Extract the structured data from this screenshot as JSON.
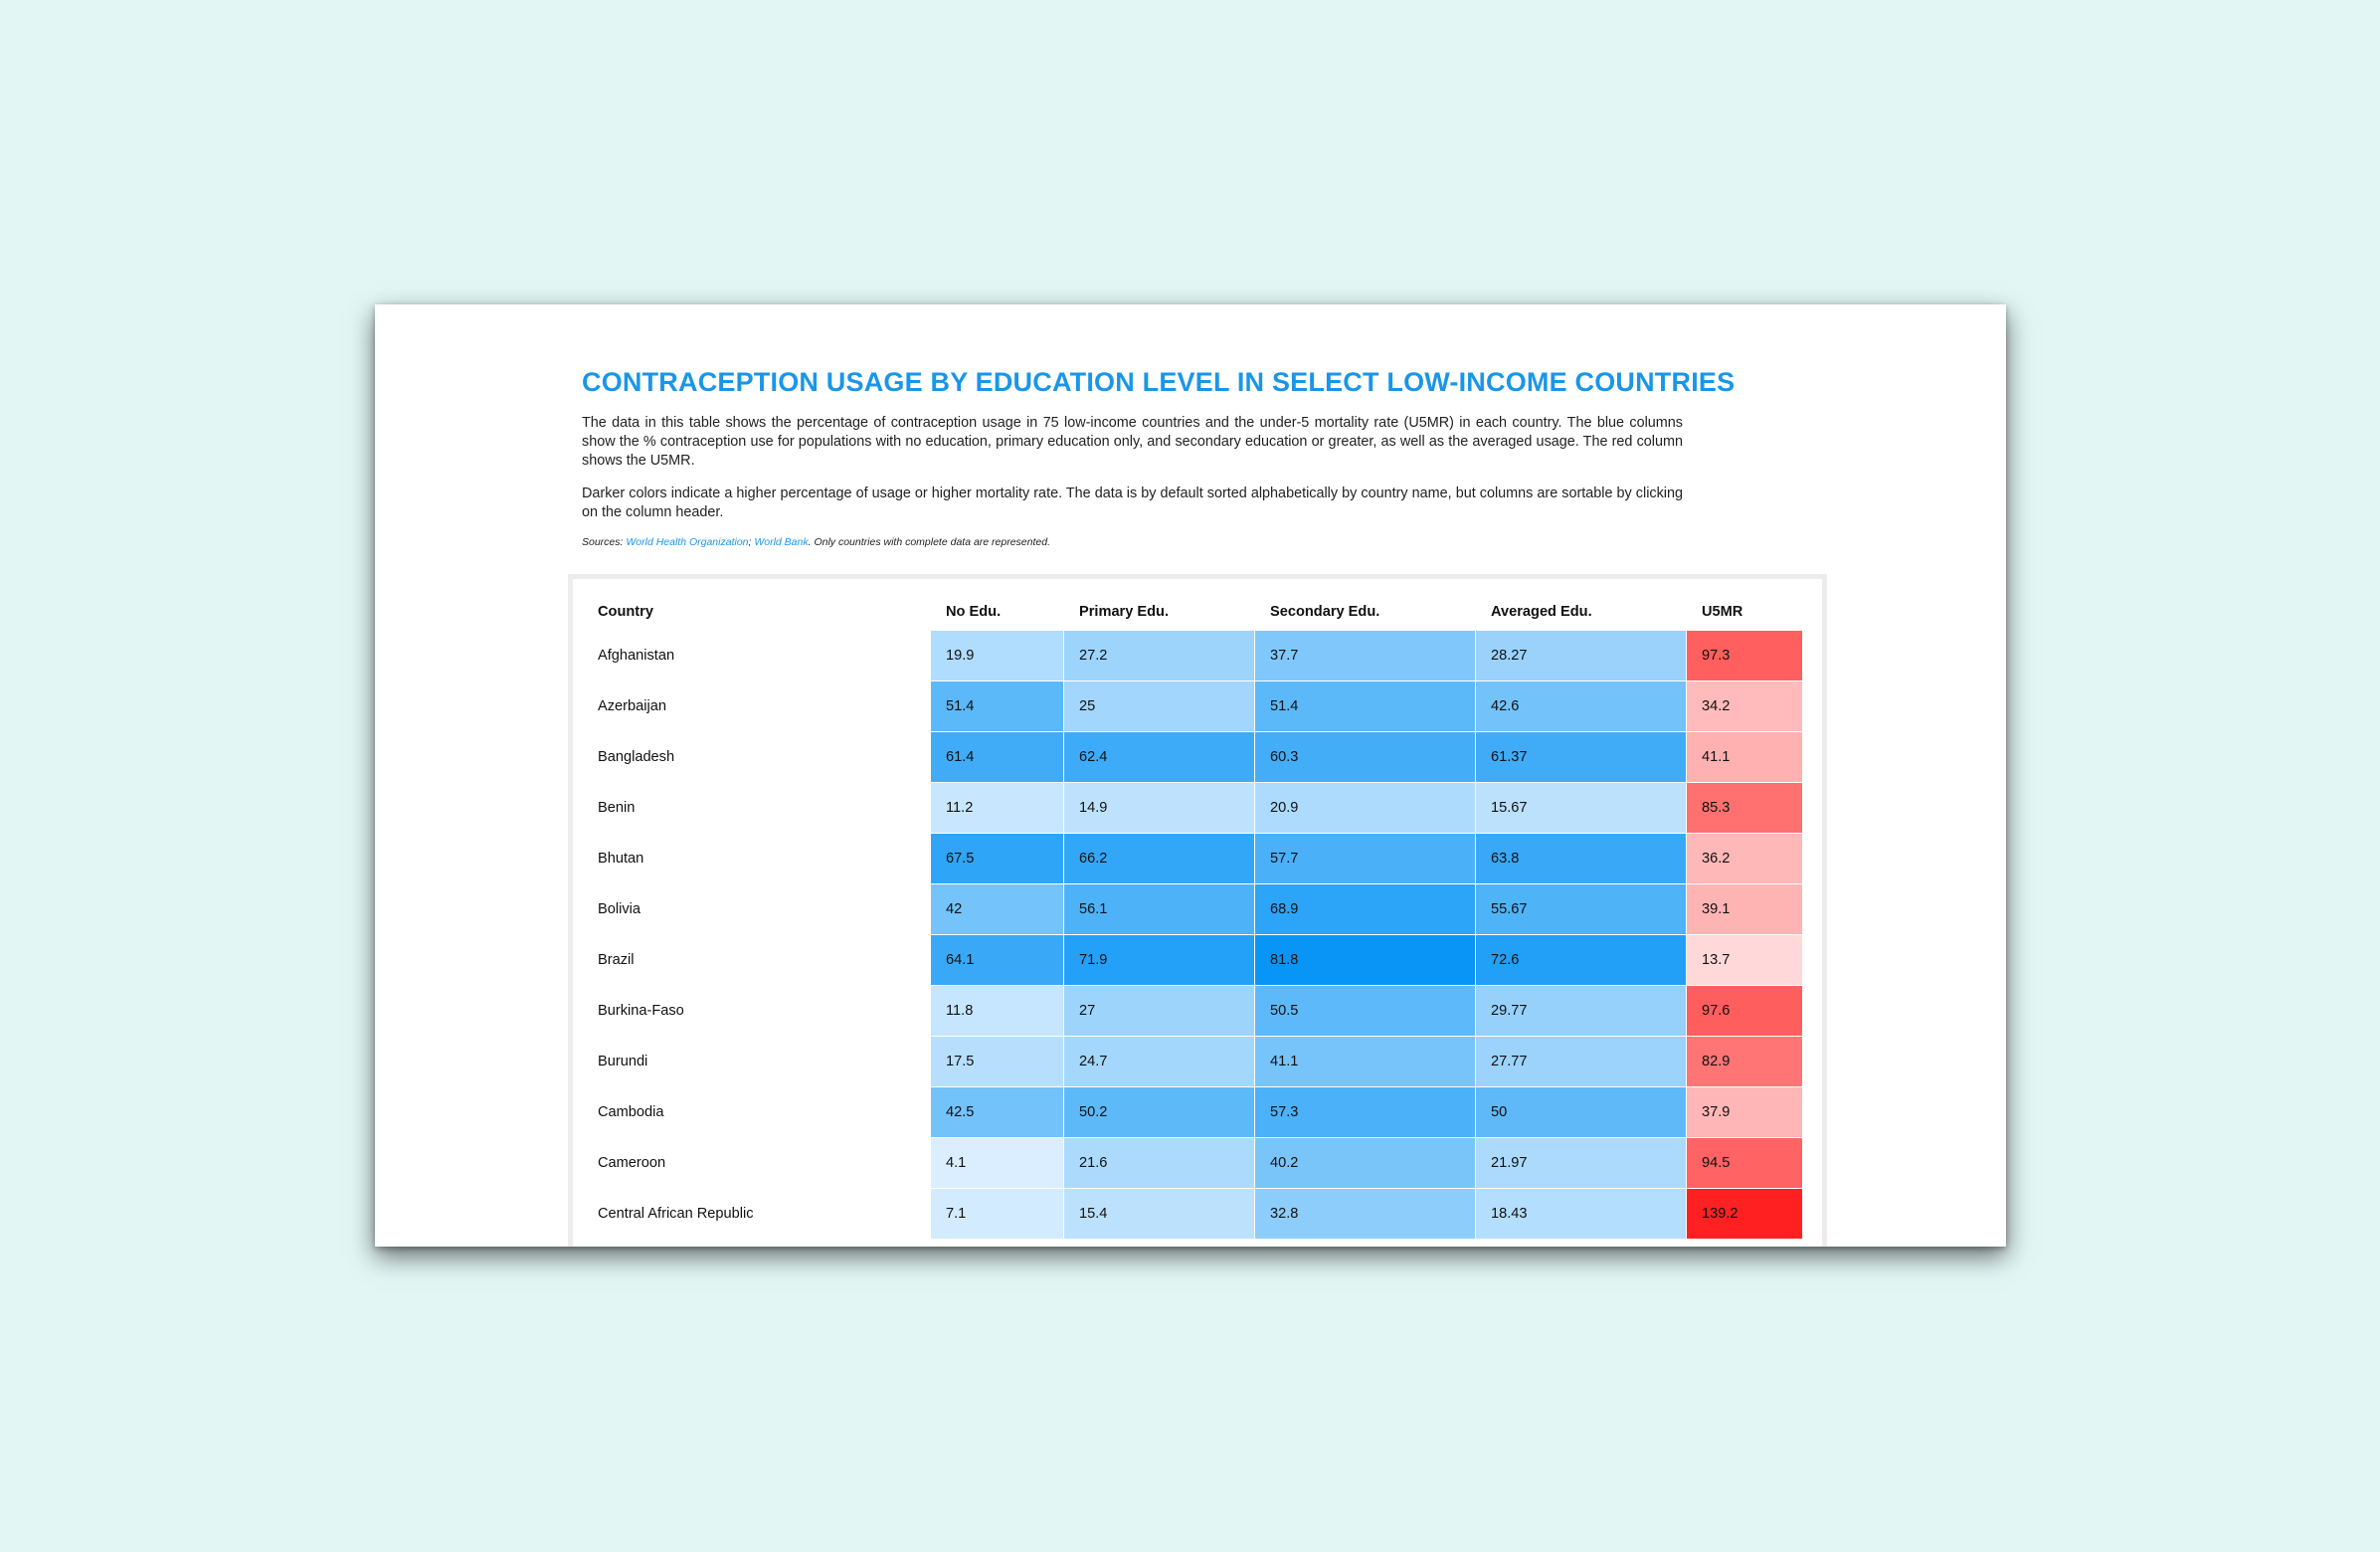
{
  "title": "CONTRACEPTION USAGE BY EDUCATION LEVEL IN SELECT LOW-INCOME COUNTRIES",
  "description_1": "The data in this table shows the percentage of contraception usage in 75 low-income countries and the under-5 mortality rate (U5MR) in each country. The blue columns show the % contraception use for populations with no education, primary education only, and secondary education or greater, as well as the averaged usage. The red column shows the U5MR.",
  "description_2": "Darker colors indicate a higher percentage of usage or higher mortality rate. The data is by default sorted alphabetically by country name, but columns are sortable by clicking on the column header.",
  "sources": {
    "prefix": "Sources: ",
    "link_1": "World Health Organization",
    "separator": "; ",
    "link_2": "World Bank",
    "suffix": ". Only countries with complete data are represented."
  },
  "colors": {
    "title": "#1a96e8",
    "blue_scale_light": "#e6f3ff",
    "blue_scale_dark": "#0091f5",
    "red_scale_light": "#ffe6e6",
    "red_scale_dark": "#ff2020"
  },
  "chart_data": {
    "type": "table",
    "columns": [
      "Country",
      "No Edu.",
      "Primary Edu.",
      "Secondary Edu.",
      "Averaged Edu.",
      "U5MR"
    ],
    "rows": [
      [
        "Afghanistan",
        "19.9",
        "27.2",
        "37.7",
        "28.27",
        "97.3"
      ],
      [
        "Azerbaijan",
        "51.4",
        "25",
        "51.4",
        "42.6",
        "34.2"
      ],
      [
        "Bangladesh",
        "61.4",
        "62.4",
        "60.3",
        "61.37",
        "41.1"
      ],
      [
        "Benin",
        "11.2",
        "14.9",
        "20.9",
        "15.67",
        "85.3"
      ],
      [
        "Bhutan",
        "67.5",
        "66.2",
        "57.7",
        "63.8",
        "36.2"
      ],
      [
        "Bolivia",
        "42",
        "56.1",
        "68.9",
        "55.67",
        "39.1"
      ],
      [
        "Brazil",
        "64.1",
        "71.9",
        "81.8",
        "72.6",
        "13.7"
      ],
      [
        "Burkina-Faso",
        "11.8",
        "27",
        "50.5",
        "29.77",
        "97.6"
      ],
      [
        "Burundi",
        "17.5",
        "24.7",
        "41.1",
        "27.77",
        "82.9"
      ],
      [
        "Cambodia",
        "42.5",
        "50.2",
        "57.3",
        "50",
        "37.9"
      ],
      [
        "Cameroon",
        "4.1",
        "21.6",
        "40.2",
        "21.97",
        "94.5"
      ],
      [
        "Central African Republic",
        "7.1",
        "15.4",
        "32.8",
        "18.43",
        "139.2"
      ]
    ]
  }
}
